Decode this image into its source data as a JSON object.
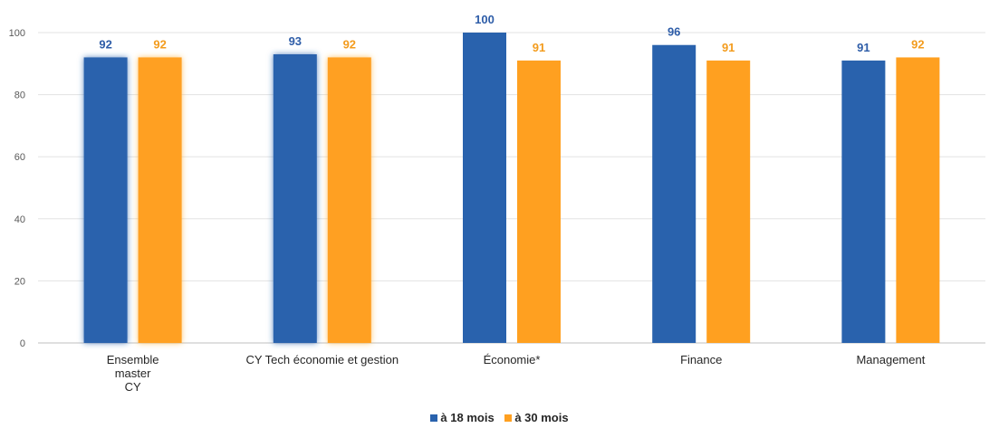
{
  "chart_data": {
    "type": "bar",
    "categories": [
      [
        "Ensemble",
        "master",
        "CY"
      ],
      [
        "CY Tech économie et gestion"
      ],
      [
        "Économie*"
      ],
      [
        "Finance"
      ],
      [
        "Management"
      ]
    ],
    "series": [
      {
        "name": "à 18 mois",
        "values": [
          92,
          93,
          100,
          96,
          91
        ],
        "color": "#2962AD",
        "label_color": "#2E5DA8"
      },
      {
        "name": "à 30 mois",
        "values": [
          92,
          92,
          91,
          91,
          92
        ],
        "color": "#FFA020",
        "label_color": "#F39C1E"
      }
    ],
    "highlighted_categories": [
      0,
      1
    ],
    "ylim": [
      0,
      100
    ],
    "yticks": [
      "0",
      "20",
      "40",
      "60",
      "80",
      "100"
    ],
    "grid": true,
    "legend_position": "bottom-center",
    "title": "",
    "xlabel": "",
    "ylabel": ""
  }
}
